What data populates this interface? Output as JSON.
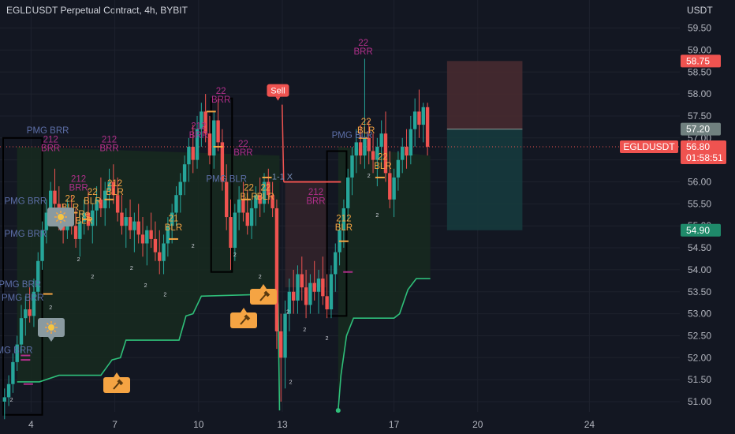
{
  "header": {
    "symbol": "EGLDUSDT Perpetual Contract",
    "interval": "4h",
    "exchange": "BYBIT",
    "currency": "USDT"
  },
  "colors": {
    "background": "#131722",
    "up": "#26a69a",
    "down": "#ef5350",
    "grid": "#1e222d",
    "axis_text": "#b2b5be",
    "stop_zone": "#4a2b30",
    "target_zone": "#163c3e",
    "trail_line": "#2fbf7a",
    "trail_fill": "#17291f",
    "pmg_text": "#5d6fa8",
    "rr_text": "#b02f8a",
    "orange": "#f5a443",
    "box": "#000000"
  },
  "price_labels": {
    "entry": "57.20",
    "stop": "58.75",
    "target": "54.90",
    "current_symbol": "EGLDUSDT",
    "current_price": "56.80",
    "countdown": "01:58:51"
  },
  "signals": {
    "sell_label": "Sell",
    "one_to_one": "1-1 X"
  },
  "annotations": [
    {
      "text": "PMG BRR",
      "x": 3.8,
      "y": 55.5,
      "kind": "pmg"
    },
    {
      "text": "PMG BRR",
      "x": 3.8,
      "y": 54.75,
      "kind": "pmg"
    },
    {
      "text": "PMG BRR",
      "x": 3.6,
      "y": 53.6,
      "kind": "pmg"
    },
    {
      "text": "PMG BRR",
      "x": 3.7,
      "y": 53.3,
      "kind": "pmg"
    },
    {
      "text": "PMG BRR",
      "x": 3.3,
      "y": 52.1,
      "kind": "pmg"
    },
    {
      "text": "PMG BRR",
      "x": 4.6,
      "y": 57.1,
      "kind": "pmg"
    },
    {
      "text": "PMG BLR",
      "x": 11.0,
      "y": 56.0,
      "kind": "pmg"
    },
    {
      "text": "PMG BLR",
      "x": 15.5,
      "y": 57.0,
      "kind": "pmg"
    },
    {
      "text": "212",
      "x": 4.7,
      "y": 56.9,
      "kind": "rr"
    },
    {
      "text": "BRR",
      "x": 4.7,
      "y": 56.7,
      "kind": "rr"
    },
    {
      "text": "212",
      "x": 5.7,
      "y": 56.0,
      "kind": "rr"
    },
    {
      "text": "BRR",
      "x": 5.7,
      "y": 55.8,
      "kind": "rr"
    },
    {
      "text": "212",
      "x": 6.8,
      "y": 56.9,
      "kind": "rr"
    },
    {
      "text": "BRR",
      "x": 6.8,
      "y": 56.7,
      "kind": "rr"
    },
    {
      "text": "212",
      "x": 10.0,
      "y": 57.2,
      "kind": "rr"
    },
    {
      "text": "BRR",
      "x": 10.0,
      "y": 57.0,
      "kind": "rr"
    },
    {
      "text": "22",
      "x": 10.8,
      "y": 58.0,
      "kind": "rr"
    },
    {
      "text": "BRR",
      "x": 10.8,
      "y": 57.8,
      "kind": "rr"
    },
    {
      "text": "22",
      "x": 11.6,
      "y": 56.8,
      "kind": "rr"
    },
    {
      "text": "BRR",
      "x": 11.6,
      "y": 56.6,
      "kind": "rr"
    },
    {
      "text": "212",
      "x": 14.2,
      "y": 55.7,
      "kind": "rr"
    },
    {
      "text": "BRR",
      "x": 14.2,
      "y": 55.5,
      "kind": "rr"
    },
    {
      "text": "22",
      "x": 15.9,
      "y": 59.1,
      "kind": "rr"
    },
    {
      "text": "BRR",
      "x": 15.9,
      "y": 58.9,
      "kind": "rr"
    },
    {
      "text": "22",
      "x": 5.4,
      "y": 55.55,
      "kind": "orange"
    },
    {
      "text": "BLR",
      "x": 5.4,
      "y": 55.35,
      "kind": "orange"
    },
    {
      "text": "22",
      "x": 6.2,
      "y": 55.7,
      "kind": "orange"
    },
    {
      "text": "BLR",
      "x": 6.2,
      "y": 55.5,
      "kind": "orange"
    },
    {
      "text": "212",
      "x": 7.0,
      "y": 55.9,
      "kind": "orange"
    },
    {
      "text": "BLR",
      "x": 7.0,
      "y": 55.7,
      "kind": "orange"
    },
    {
      "text": "Re",
      "x": 5.9,
      "y": 55.2,
      "kind": "orange"
    },
    {
      "text": "BLR",
      "x": 5.9,
      "y": 55.05,
      "kind": "orange"
    },
    {
      "text": "21",
      "x": 9.1,
      "y": 55.1,
      "kind": "orange"
    },
    {
      "text": "BLR",
      "x": 9.1,
      "y": 54.9,
      "kind": "orange"
    },
    {
      "text": "22",
      "x": 11.8,
      "y": 55.8,
      "kind": "orange"
    },
    {
      "text": "BLR",
      "x": 11.8,
      "y": 55.6,
      "kind": "orange"
    },
    {
      "text": "22",
      "x": 12.4,
      "y": 55.8,
      "kind": "orange"
    },
    {
      "text": "BLR",
      "x": 12.4,
      "y": 55.6,
      "kind": "orange"
    },
    {
      "text": "212",
      "x": 15.2,
      "y": 55.1,
      "kind": "orange"
    },
    {
      "text": "BLR",
      "x": 15.2,
      "y": 54.9,
      "kind": "orange"
    },
    {
      "text": "22",
      "x": 16.0,
      "y": 57.3,
      "kind": "orange"
    },
    {
      "text": "BLR",
      "x": 16.0,
      "y": 57.1,
      "kind": "orange"
    },
    {
      "text": "22",
      "x": 16.6,
      "y": 56.5,
      "kind": "orange"
    },
    {
      "text": "BLR",
      "x": 16.6,
      "y": 56.3,
      "kind": "orange"
    }
  ],
  "small_marks": [
    {
      "text": "2",
      "x": 5.7,
      "y": 54.2
    },
    {
      "text": "2",
      "x": 6.2,
      "y": 53.8
    },
    {
      "text": "2",
      "x": 7.6,
      "y": 54.0
    },
    {
      "text": "2",
      "x": 8.1,
      "y": 53.6
    },
    {
      "text": "2",
      "x": 8.8,
      "y": 53.4
    },
    {
      "text": "2",
      "x": 9.8,
      "y": 54.5
    },
    {
      "text": "2",
      "x": 11.3,
      "y": 54.3
    },
    {
      "text": "2",
      "x": 12.2,
      "y": 53.8
    },
    {
      "text": "2",
      "x": 13.2,
      "y": 53.0
    },
    {
      "text": "2",
      "x": 13.8,
      "y": 52.6
    },
    {
      "text": "2",
      "x": 14.6,
      "y": 52.4
    },
    {
      "text": "2",
      "x": 13.3,
      "y": 51.4
    },
    {
      "text": "2",
      "x": 3.3,
      "y": 51.0
    },
    {
      "text": "2",
      "x": 4.7,
      "y": 53.1
    },
    {
      "text": "2",
      "x": 16.1,
      "y": 56.1
    },
    {
      "text": "2",
      "x": 16.4,
      "y": 55.2
    }
  ],
  "chart_data": {
    "type": "candlestick",
    "title": "EGLDUSDT Perpetual Contract, 4h, BYBIT",
    "x_ticks": [
      "4",
      "7",
      "10",
      "13",
      "17",
      "20",
      "24"
    ],
    "x_tick_positions": [
      4,
      7,
      10,
      13,
      17,
      20,
      24
    ],
    "y_ticks": [
      "51.00",
      "51.50",
      "52.00",
      "52.50",
      "53.00",
      "53.50",
      "54.00",
      "54.50",
      "55.00",
      "55.50",
      "56.00",
      "56.50",
      "57.00",
      "57.50",
      "58.00",
      "58.50",
      "59.00",
      "59.50"
    ],
    "ylim": [
      50.75,
      60.0
    ],
    "xlim": [
      2.75,
      25.0
    ],
    "current_price": 56.8,
    "position": {
      "type": "short",
      "entry": 57.2,
      "stop": 58.75,
      "target": 54.9,
      "x_start": 18.9,
      "x_end": 21.6
    },
    "candles": [
      {
        "x": 3.05,
        "o": 51.0,
        "h": 51.3,
        "l": 50.6,
        "c": 51.1
      },
      {
        "x": 3.2,
        "o": 51.1,
        "h": 51.6,
        "l": 50.9,
        "c": 51.4
      },
      {
        "x": 3.35,
        "o": 51.4,
        "h": 52.1,
        "l": 51.2,
        "c": 51.9
      },
      {
        "x": 3.5,
        "o": 51.9,
        "h": 52.5,
        "l": 51.7,
        "c": 52.3
      },
      {
        "x": 3.65,
        "o": 52.3,
        "h": 53.2,
        "l": 52.1,
        "c": 52.9
      },
      {
        "x": 3.8,
        "o": 52.9,
        "h": 53.4,
        "l": 52.5,
        "c": 53.1
      },
      {
        "x": 3.95,
        "o": 53.1,
        "h": 53.6,
        "l": 52.8,
        "c": 52.95
      },
      {
        "x": 4.1,
        "o": 52.95,
        "h": 53.8,
        "l": 52.7,
        "c": 53.5
      },
      {
        "x": 4.25,
        "o": 53.5,
        "h": 54.4,
        "l": 53.3,
        "c": 54.2
      },
      {
        "x": 4.4,
        "o": 54.2,
        "h": 55.1,
        "l": 54.0,
        "c": 54.9
      },
      {
        "x": 4.55,
        "o": 54.9,
        "h": 55.6,
        "l": 54.6,
        "c": 55.3
      },
      {
        "x": 4.7,
        "o": 55.3,
        "h": 56.0,
        "l": 55.0,
        "c": 55.8
      },
      {
        "x": 4.85,
        "o": 55.8,
        "h": 56.3,
        "l": 55.2,
        "c": 55.5
      },
      {
        "x": 5.0,
        "o": 55.5,
        "h": 55.9,
        "l": 54.9,
        "c": 55.1
      },
      {
        "x": 5.15,
        "o": 55.1,
        "h": 55.5,
        "l": 54.6,
        "c": 54.9
      },
      {
        "x": 5.3,
        "o": 54.9,
        "h": 55.6,
        "l": 54.7,
        "c": 55.4
      },
      {
        "x": 5.45,
        "o": 55.4,
        "h": 55.7,
        "l": 54.8,
        "c": 55.0
      },
      {
        "x": 5.6,
        "o": 55.0,
        "h": 55.4,
        "l": 54.5,
        "c": 54.7
      },
      {
        "x": 5.75,
        "o": 54.7,
        "h": 55.3,
        "l": 54.3,
        "c": 55.1
      },
      {
        "x": 5.9,
        "o": 55.1,
        "h": 55.6,
        "l": 54.8,
        "c": 55.3
      },
      {
        "x": 6.05,
        "o": 55.3,
        "h": 55.8,
        "l": 54.9,
        "c": 55.0
      },
      {
        "x": 6.2,
        "o": 55.0,
        "h": 55.5,
        "l": 54.6,
        "c": 55.35
      },
      {
        "x": 6.35,
        "o": 55.35,
        "h": 55.9,
        "l": 55.0,
        "c": 55.6
      },
      {
        "x": 6.5,
        "o": 55.6,
        "h": 56.1,
        "l": 55.2,
        "c": 55.4
      },
      {
        "x": 6.65,
        "o": 55.4,
        "h": 56.0,
        "l": 55.0,
        "c": 55.8
      },
      {
        "x": 6.8,
        "o": 55.8,
        "h": 56.3,
        "l": 55.4,
        "c": 56.0
      },
      {
        "x": 6.95,
        "o": 56.0,
        "h": 56.4,
        "l": 55.5,
        "c": 55.7
      },
      {
        "x": 7.1,
        "o": 55.7,
        "h": 56.1,
        "l": 55.1,
        "c": 55.3
      },
      {
        "x": 7.25,
        "o": 55.3,
        "h": 55.7,
        "l": 54.8,
        "c": 55.0
      },
      {
        "x": 7.4,
        "o": 55.0,
        "h": 55.4,
        "l": 54.5,
        "c": 55.2
      },
      {
        "x": 7.55,
        "o": 55.2,
        "h": 55.6,
        "l": 54.7,
        "c": 54.9
      },
      {
        "x": 7.7,
        "o": 54.9,
        "h": 55.3,
        "l": 54.4,
        "c": 55.1
      },
      {
        "x": 7.85,
        "o": 55.1,
        "h": 55.5,
        "l": 54.6,
        "c": 54.8
      },
      {
        "x": 8.0,
        "o": 54.8,
        "h": 55.2,
        "l": 54.3,
        "c": 54.6
      },
      {
        "x": 8.15,
        "o": 54.6,
        "h": 55.0,
        "l": 54.1,
        "c": 54.9
      },
      {
        "x": 8.3,
        "o": 54.9,
        "h": 55.3,
        "l": 54.5,
        "c": 54.7
      },
      {
        "x": 8.45,
        "o": 54.7,
        "h": 55.1,
        "l": 54.2,
        "c": 54.4
      },
      {
        "x": 8.6,
        "o": 54.4,
        "h": 54.9,
        "l": 53.9,
        "c": 54.2
      },
      {
        "x": 8.75,
        "o": 54.2,
        "h": 54.8,
        "l": 53.9,
        "c": 54.6
      },
      {
        "x": 8.9,
        "o": 54.6,
        "h": 55.2,
        "l": 54.3,
        "c": 55.0
      },
      {
        "x": 9.05,
        "o": 55.0,
        "h": 55.5,
        "l": 54.6,
        "c": 55.3
      },
      {
        "x": 9.2,
        "o": 55.3,
        "h": 55.9,
        "l": 55.0,
        "c": 55.7
      },
      {
        "x": 9.35,
        "o": 55.7,
        "h": 56.2,
        "l": 55.3,
        "c": 56.0
      },
      {
        "x": 9.5,
        "o": 56.0,
        "h": 56.6,
        "l": 55.7,
        "c": 56.4
      },
      {
        "x": 9.65,
        "o": 56.4,
        "h": 57.0,
        "l": 56.0,
        "c": 56.8
      },
      {
        "x": 9.8,
        "o": 56.8,
        "h": 57.3,
        "l": 56.2,
        "c": 56.5
      },
      {
        "x": 9.95,
        "o": 56.5,
        "h": 57.5,
        "l": 56.3,
        "c": 57.2
      },
      {
        "x": 10.1,
        "o": 57.2,
        "h": 57.8,
        "l": 56.8,
        "c": 57.6
      },
      {
        "x": 10.25,
        "o": 57.6,
        "h": 58.0,
        "l": 56.9,
        "c": 57.1
      },
      {
        "x": 10.4,
        "o": 57.1,
        "h": 57.5,
        "l": 56.4,
        "c": 56.6
      },
      {
        "x": 10.55,
        "o": 56.6,
        "h": 57.6,
        "l": 56.3,
        "c": 57.4
      },
      {
        "x": 10.7,
        "o": 57.4,
        "h": 57.9,
        "l": 56.7,
        "c": 56.9
      },
      {
        "x": 10.85,
        "o": 56.9,
        "h": 57.2,
        "l": 55.8,
        "c": 56.0
      },
      {
        "x": 11.0,
        "o": 56.0,
        "h": 56.4,
        "l": 54.9,
        "c": 55.2
      },
      {
        "x": 11.15,
        "o": 55.2,
        "h": 55.6,
        "l": 54.0,
        "c": 54.5
      },
      {
        "x": 11.3,
        "o": 54.5,
        "h": 55.5,
        "l": 54.2,
        "c": 55.3
      },
      {
        "x": 11.45,
        "o": 55.3,
        "h": 55.9,
        "l": 54.9,
        "c": 55.6
      },
      {
        "x": 11.6,
        "o": 55.6,
        "h": 56.0,
        "l": 55.1,
        "c": 55.3
      },
      {
        "x": 11.75,
        "o": 55.3,
        "h": 55.8,
        "l": 54.8,
        "c": 55.0
      },
      {
        "x": 11.9,
        "o": 55.0,
        "h": 55.6,
        "l": 54.7,
        "c": 55.4
      },
      {
        "x": 12.05,
        "o": 55.4,
        "h": 55.9,
        "l": 55.0,
        "c": 55.7
      },
      {
        "x": 12.2,
        "o": 55.7,
        "h": 56.1,
        "l": 55.2,
        "c": 55.5
      },
      {
        "x": 12.35,
        "o": 55.5,
        "h": 56.2,
        "l": 55.3,
        "c": 56.0
      },
      {
        "x": 12.5,
        "o": 56.0,
        "h": 56.3,
        "l": 55.5,
        "c": 55.7
      },
      {
        "x": 12.65,
        "o": 55.7,
        "h": 56.0,
        "l": 55.2,
        "c": 55.4
      },
      {
        "x": 12.8,
        "o": 55.4,
        "h": 55.6,
        "l": 52.2,
        "c": 52.6
      },
      {
        "x": 12.95,
        "o": 52.6,
        "h": 53.0,
        "l": 51.0,
        "c": 52.0
      },
      {
        "x": 13.1,
        "o": 52.0,
        "h": 53.3,
        "l": 51.3,
        "c": 53.0
      },
      {
        "x": 13.25,
        "o": 53.0,
        "h": 53.8,
        "l": 52.6,
        "c": 53.5
      },
      {
        "x": 13.4,
        "o": 53.5,
        "h": 54.0,
        "l": 53.0,
        "c": 53.3
      },
      {
        "x": 13.55,
        "o": 53.3,
        "h": 54.1,
        "l": 53.0,
        "c": 53.9
      },
      {
        "x": 13.7,
        "o": 53.9,
        "h": 54.3,
        "l": 53.3,
        "c": 53.6
      },
      {
        "x": 13.85,
        "o": 53.6,
        "h": 54.0,
        "l": 52.9,
        "c": 53.2
      },
      {
        "x": 14.0,
        "o": 53.2,
        "h": 53.9,
        "l": 53.0,
        "c": 53.7
      },
      {
        "x": 14.15,
        "o": 53.7,
        "h": 54.2,
        "l": 53.3,
        "c": 53.5
      },
      {
        "x": 14.3,
        "o": 53.5,
        "h": 54.0,
        "l": 53.0,
        "c": 53.8
      },
      {
        "x": 14.45,
        "o": 53.8,
        "h": 54.3,
        "l": 53.2,
        "c": 53.4
      },
      {
        "x": 14.6,
        "o": 53.4,
        "h": 53.9,
        "l": 52.9,
        "c": 53.1
      },
      {
        "x": 14.75,
        "o": 53.1,
        "h": 54.1,
        "l": 52.9,
        "c": 53.9
      },
      {
        "x": 14.9,
        "o": 53.9,
        "h": 54.6,
        "l": 53.5,
        "c": 54.4
      },
      {
        "x": 15.05,
        "o": 54.4,
        "h": 55.1,
        "l": 54.1,
        "c": 54.9
      },
      {
        "x": 15.2,
        "o": 54.9,
        "h": 55.6,
        "l": 54.5,
        "c": 55.4
      },
      {
        "x": 15.35,
        "o": 55.4,
        "h": 56.3,
        "l": 55.1,
        "c": 56.1
      },
      {
        "x": 15.5,
        "o": 56.1,
        "h": 56.8,
        "l": 55.7,
        "c": 56.6
      },
      {
        "x": 15.65,
        "o": 56.6,
        "h": 57.2,
        "l": 56.2,
        "c": 56.9
      },
      {
        "x": 15.8,
        "o": 56.9,
        "h": 57.3,
        "l": 56.4,
        "c": 56.6
      },
      {
        "x": 15.95,
        "o": 56.6,
        "h": 58.8,
        "l": 56.3,
        "c": 57.0
      },
      {
        "x": 16.1,
        "o": 57.0,
        "h": 57.4,
        "l": 56.4,
        "c": 56.7
      },
      {
        "x": 16.25,
        "o": 56.7,
        "h": 57.1,
        "l": 56.2,
        "c": 56.5
      },
      {
        "x": 16.4,
        "o": 56.5,
        "h": 57.0,
        "l": 55.9,
        "c": 56.8
      },
      {
        "x": 16.55,
        "o": 56.8,
        "h": 57.4,
        "l": 56.3,
        "c": 57.1
      },
      {
        "x": 16.7,
        "o": 57.1,
        "h": 57.6,
        "l": 56.0,
        "c": 56.2
      },
      {
        "x": 16.85,
        "o": 56.2,
        "h": 56.7,
        "l": 55.4,
        "c": 55.6
      },
      {
        "x": 17.0,
        "o": 55.6,
        "h": 56.3,
        "l": 55.2,
        "c": 56.1
      },
      {
        "x": 17.15,
        "o": 56.1,
        "h": 56.7,
        "l": 55.8,
        "c": 56.5
      },
      {
        "x": 17.3,
        "o": 56.5,
        "h": 57.0,
        "l": 56.2,
        "c": 56.8
      },
      {
        "x": 17.45,
        "o": 56.8,
        "h": 57.2,
        "l": 56.3,
        "c": 56.6
      },
      {
        "x": 17.6,
        "o": 56.6,
        "h": 57.5,
        "l": 56.4,
        "c": 57.2
      },
      {
        "x": 17.75,
        "o": 57.2,
        "h": 57.9,
        "l": 56.8,
        "c": 57.6
      },
      {
        "x": 17.9,
        "o": 57.6,
        "h": 58.1,
        "l": 57.0,
        "c": 57.3
      },
      {
        "x": 18.05,
        "o": 57.3,
        "h": 57.8,
        "l": 56.9,
        "c": 57.7
      },
      {
        "x": 18.2,
        "o": 57.7,
        "h": 57.8,
        "l": 56.6,
        "c": 56.8
      }
    ],
    "trail_stop": [
      {
        "x": 3.5,
        "y": 51.45
      },
      {
        "x": 4.3,
        "y": 51.45
      },
      {
        "x": 5.0,
        "y": 51.6
      },
      {
        "x": 6.5,
        "y": 51.6
      },
      {
        "x": 6.9,
        "y": 51.95
      },
      {
        "x": 7.2,
        "y": 52.0
      },
      {
        "x": 7.4,
        "y": 52.4
      },
      {
        "x": 9.3,
        "y": 52.4
      },
      {
        "x": 9.55,
        "y": 52.95
      },
      {
        "x": 9.8,
        "y": 53.0
      },
      {
        "x": 10.1,
        "y": 53.4
      },
      {
        "x": 12.8,
        "y": 53.45
      },
      {
        "x": 12.85,
        "y": 53.2
      },
      {
        "x": 12.9,
        "y": 50.8
      },
      {
        "x": 15.0,
        "y": 50.8
      },
      {
        "x": 15.1,
        "y": 51.6
      },
      {
        "x": 15.3,
        "y": 52.5
      },
      {
        "x": 15.55,
        "y": 52.9
      },
      {
        "x": 17.0,
        "y": 52.9
      },
      {
        "x": 17.2,
        "y": 53.0
      },
      {
        "x": 17.5,
        "y": 53.55
      },
      {
        "x": 17.8,
        "y": 53.8
      },
      {
        "x": 18.3,
        "y": 53.8
      }
    ],
    "boxes": [
      {
        "x1": 3.0,
        "x2": 4.4,
        "y1": 57.0,
        "y2": 50.7
      },
      {
        "x1": 10.45,
        "x2": 11.2,
        "y1": 57.9,
        "y2": 53.95
      },
      {
        "x1": 14.6,
        "x2": 15.3,
        "y1": 56.7,
        "y2": 52.95
      }
    ],
    "sell_signal": {
      "x": 12.9,
      "y": 57.9,
      "line_to_x": 15.1,
      "line_y": 56.0,
      "target_x": 13.05,
      "target_y": 56.9
    }
  }
}
